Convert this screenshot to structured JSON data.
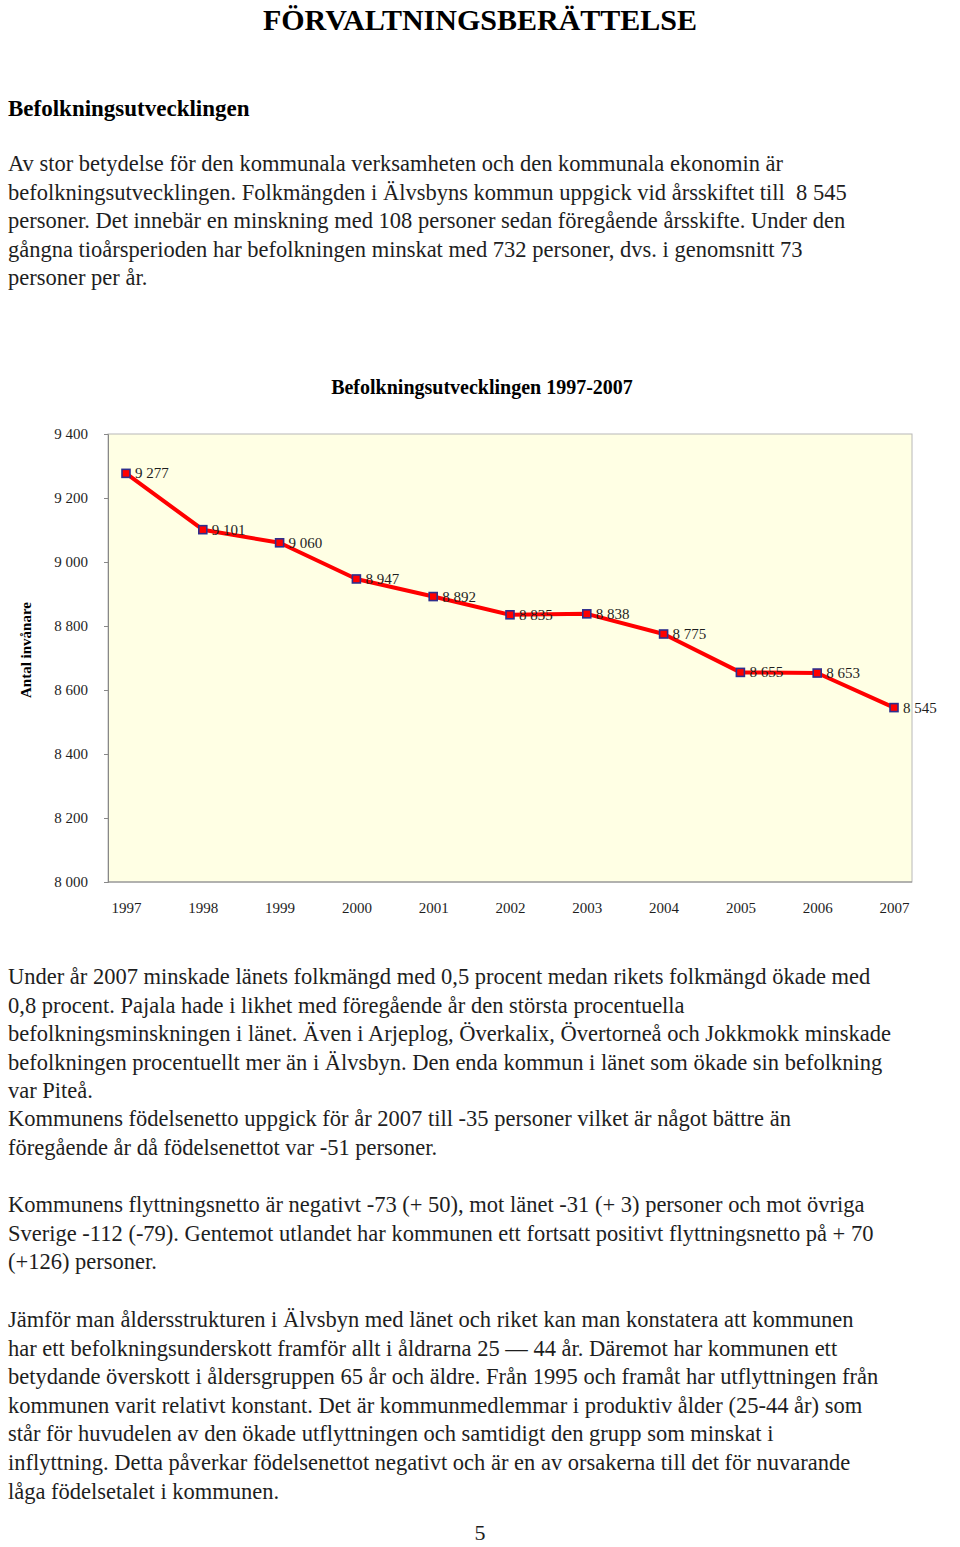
{
  "header": {
    "title": "FÖRVALTNINGSBERÄTTELSE",
    "heading": "Befolkningsutvecklingen"
  },
  "paragraphs_before": [
    [
      "Av stor betydelse för den kommunala verksamheten och den kommunala ekonomin är",
      "befolkningsutvecklingen. Folkmängden i Älvsbyns kommun uppgick vid årsskiftet till  8 545",
      "personer. Det innebär en minskning med 108 personer sedan föregående årsskifte. Under den",
      "gångna tioårsperioden har befolkningen minskat med 732 personer, dvs. i genomsnitt 73",
      "personer per år."
    ]
  ],
  "chart_data": {
    "type": "line",
    "title": "Befolkningsutvecklingen 1997-2007",
    "y_label": "Antal invånare",
    "categories": [
      "1997",
      "1998",
      "1999",
      "2000",
      "2001",
      "2002",
      "2003",
      "2004",
      "2005",
      "2006",
      "2007"
    ],
    "values": [
      9277,
      9101,
      9060,
      8947,
      8892,
      8835,
      8838,
      8775,
      8655,
      8653,
      8545
    ],
    "value_labels": [
      "9 277",
      "9 101",
      "9 060",
      "8 947",
      "8 892",
      "8 835",
      "8 838",
      "8 775",
      "8 655",
      "8 653",
      "8 545"
    ],
    "color": "#ff0000",
    "marker": "square",
    "data_labels": true,
    "grid": false,
    "ylim": [
      8000,
      9400
    ],
    "yticks": [
      {
        "value": 8000,
        "label": "8 000"
      },
      {
        "value": 8200,
        "label": "8 200"
      },
      {
        "value": 8400,
        "label": "8 400"
      },
      {
        "value": 8600,
        "label": "8 600"
      },
      {
        "value": 8800,
        "label": "8 800"
      },
      {
        "value": 9000,
        "label": "9 000"
      },
      {
        "value": 9200,
        "label": "9 200"
      },
      {
        "value": 9400,
        "label": "9 400"
      }
    ]
  },
  "paragraphs_after": [
    [
      "Under år 2007 minskade länets folkmängd med 0,5 procent medan rikets folkmängd ökade med",
      "0,8 procent. Pajala hade i likhet med föregående år den största procentuella",
      "befolkningsminskningen i länet. Även i Arjeplog, Överkalix, Övertorneå och Jokkmokk minskade",
      "befolkningen procentuellt mer än i Älvsbyn. Den enda kommun i länet som ökade sin befolkning",
      "var Piteå."
    ],
    [
      "Kommunens födelsenetto uppgick för år 2007 till -35 personer vilket är något bättre än",
      "föregående år då födelsenettot var -51 personer."
    ],
    [
      "Kommunens flyttningsnetto är negativt -73 (+ 50), mot länet -31 (+ 3) personer och mot övriga",
      "Sverige -112 (-79). Gentemot utlandet har kommunen ett fortsatt positivt flyttningsnetto på + 70",
      "(+126) personer."
    ],
    [
      "Jämför man åldersstrukturen i Älvsbyn med länet och riket kan man konstatera att kommunen",
      "har ett befolkningsunderskott framför allt i åldrarna 25 — 44 år. Däremot har kommunen ett",
      "betydande överskott i åldersgruppen 65 år och äldre. Från 1995 och framåt har utflyttningen från",
      "kommunen varit relativt konstant. Det är kommunmedlemmar i produktiv ålder (25-44 år) som",
      "står för huvudelen av den ökade utflyttningen och samtidigt den grupp som minskat i",
      "inflyttning. Detta påverkar födelsenettot negativt och är en av orsakerna till det för nuvarande",
      "låga födelsetalet i kommunen."
    ]
  ],
  "page_number": "5"
}
